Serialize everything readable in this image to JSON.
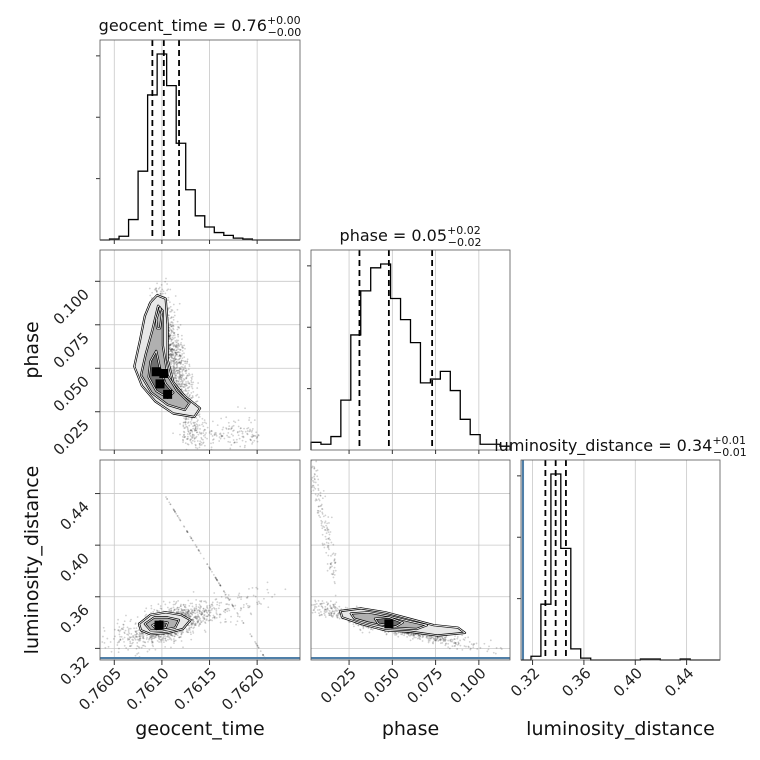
{
  "chart_data": {
    "type": "corner",
    "parameters": [
      {
        "name": "geocent_time",
        "axis_label": "geocent_time",
        "title": {
          "prefix": "geocent_time = 0.76",
          "plus": "+0.00",
          "minus": "−0.00"
        },
        "range": [
          0.76035,
          0.76245
        ],
        "ticks": [
          0.7605,
          0.761,
          0.7615,
          0.762
        ],
        "tick_labels": [
          "0.7605",
          "0.7610",
          "0.7615",
          "0.7620"
        ],
        "quantiles": [
          0.7609,
          0.76102,
          0.76118
        ],
        "hist": {
          "edges": [
            0.76035,
            0.76045,
            0.76055,
            0.76065,
            0.76075,
            0.76085,
            0.76095,
            0.76105,
            0.76115,
            0.76125,
            0.76135,
            0.76145,
            0.76155,
            0.76165,
            0.76175,
            0.76185,
            0.76195,
            0.76205,
            0.76215,
            0.76225,
            0.76235,
            0.76245
          ],
          "counts": [
            0,
            0.5,
            2,
            11,
            37,
            78,
            100,
            83,
            52,
            27,
            13,
            7,
            4,
            2.5,
            1,
            0.5,
            0,
            0,
            0,
            0,
            0
          ]
        }
      },
      {
        "name": "phase",
        "axis_label": "phase",
        "title": {
          "prefix": "phase = 0.05",
          "plus": "+0.02",
          "minus": "−0.02"
        },
        "range": [
          0.003,
          0.118
        ],
        "ticks": [
          0.025,
          0.05,
          0.075,
          0.1
        ],
        "tick_labels": [
          "0.025",
          "0.050",
          "0.075",
          "0.100"
        ],
        "quantiles": [
          0.031,
          0.048,
          0.073
        ],
        "hist": {
          "edges": [
            0.003,
            0.00875,
            0.0145,
            0.02025,
            0.026,
            0.03175,
            0.0375,
            0.04325,
            0.049,
            0.05475,
            0.0605,
            0.06625,
            0.072,
            0.07775,
            0.0835,
            0.08925,
            0.095,
            0.10075,
            0.1065,
            0.11225,
            0.118
          ],
          "counts": [
            4,
            3,
            7,
            26,
            60,
            83,
            95,
            97,
            79,
            68,
            56,
            35,
            37,
            41,
            31,
            16,
            8,
            3,
            3,
            2
          ]
        }
      },
      {
        "name": "luminosity_distance",
        "axis_label": "luminosity_distance",
        "title": {
          "prefix": "luminosity_distance = 0.34",
          "plus": "+0.01",
          "minus": "−0.01"
        },
        "range": [
          0.311,
          0.466
        ],
        "ticks": [
          0.32,
          0.36,
          0.4,
          0.44
        ],
        "tick_labels": [
          "0.32",
          "0.36",
          "0.40",
          "0.44"
        ],
        "quantiles": [
          0.33,
          0.338,
          0.346
        ],
        "truth": 0.3125,
        "hist": {
          "edges": [
            0.311,
            0.3188,
            0.3265,
            0.3343,
            0.342,
            0.3498,
            0.3575,
            0.3653,
            0.373,
            0.3808,
            0.3885,
            0.3963,
            0.404,
            0.4118,
            0.4195,
            0.4273,
            0.435,
            0.4428,
            0.4505,
            0.4583,
            0.466
          ],
          "counts": [
            0,
            2,
            30,
            100,
            60,
            6,
            1,
            0,
            0,
            0,
            0,
            0,
            0.5,
            0.5,
            0,
            0,
            0.5,
            0,
            0,
            0
          ]
        }
      }
    ],
    "pairs": [
      {
        "x": "geocent_time",
        "y": "phase",
        "contours": [
          [
            [
              0.76088,
              0.088
            ],
            [
              0.76095,
              0.092
            ],
            [
              0.76104,
              0.09
            ],
            [
              0.76106,
              0.075
            ],
            [
              0.76106,
              0.055
            ],
            [
              0.76112,
              0.042
            ],
            [
              0.76124,
              0.034
            ],
            [
              0.7614,
              0.027
            ],
            [
              0.76134,
              0.022
            ],
            [
              0.76112,
              0.024
            ],
            [
              0.76093,
              0.031
            ],
            [
              0.76079,
              0.04
            ],
            [
              0.76071,
              0.051
            ],
            [
              0.76077,
              0.066
            ],
            [
              0.76082,
              0.08
            ]
          ],
          [
            [
              0.7609,
              0.072
            ],
            [
              0.76096,
              0.086
            ],
            [
              0.76101,
              0.083
            ],
            [
              0.76101,
              0.063
            ],
            [
              0.76106,
              0.046
            ],
            [
              0.76116,
              0.037
            ],
            [
              0.76129,
              0.03
            ],
            [
              0.76124,
              0.026
            ],
            [
              0.76106,
              0.029
            ],
            [
              0.76089,
              0.036
            ],
            [
              0.76078,
              0.046
            ],
            [
              0.76083,
              0.058
            ]
          ],
          [
            [
              0.76094,
              0.06
            ],
            [
              0.76098,
              0.05
            ],
            [
              0.76104,
              0.041
            ],
            [
              0.76112,
              0.036
            ],
            [
              0.76106,
              0.033
            ],
            [
              0.76094,
              0.037
            ],
            [
              0.76086,
              0.045
            ],
            [
              0.76088,
              0.054
            ]
          ],
          [
            [
              0.76094,
              0.078
            ],
            [
              0.76098,
              0.085
            ],
            [
              0.761,
              0.081
            ],
            [
              0.76098,
              0.073
            ],
            [
              0.76095,
              0.073
            ]
          ]
        ],
        "dense_cells": [
          [
            0.76098,
            0.041
          ],
          [
            0.76106,
            0.035
          ],
          [
            0.76094,
            0.048
          ],
          [
            0.76102,
            0.047
          ]
        ]
      },
      {
        "x": "geocent_time",
        "y": "luminosity_distance",
        "contours": [
          [
            [
              0.76076,
              0.339
            ],
            [
              0.76088,
              0.346
            ],
            [
              0.76104,
              0.348
            ],
            [
              0.7612,
              0.346
            ],
            [
              0.7613,
              0.342
            ],
            [
              0.76122,
              0.335
            ],
            [
              0.76106,
              0.332
            ],
            [
              0.76088,
              0.331
            ],
            [
              0.76078,
              0.334
            ]
          ],
          [
            [
              0.76082,
              0.339
            ],
            [
              0.76092,
              0.344
            ],
            [
              0.76106,
              0.344
            ],
            [
              0.76118,
              0.342
            ],
            [
              0.76114,
              0.336
            ],
            [
              0.761,
              0.334
            ],
            [
              0.76088,
              0.334
            ]
          ],
          [
            [
              0.7609,
              0.338
            ],
            [
              0.76098,
              0.341
            ],
            [
              0.76106,
              0.34
            ],
            [
              0.76104,
              0.336
            ],
            [
              0.76094,
              0.335
            ]
          ]
        ],
        "dense_cells": [
          [
            0.76097,
            0.338
          ]
        ]
      },
      {
        "x": "phase",
        "y": "luminosity_distance",
        "contours": [
          [
            [
              0.02,
              0.349
            ],
            [
              0.032,
              0.351
            ],
            [
              0.046,
              0.348
            ],
            [
              0.06,
              0.343
            ],
            [
              0.074,
              0.338
            ],
            [
              0.088,
              0.336
            ],
            [
              0.092,
              0.332
            ],
            [
              0.076,
              0.33
            ],
            [
              0.06,
              0.333
            ],
            [
              0.046,
              0.334
            ],
            [
              0.032,
              0.339
            ],
            [
              0.021,
              0.344
            ]
          ],
          [
            [
              0.026,
              0.347
            ],
            [
              0.036,
              0.348
            ],
            [
              0.048,
              0.345
            ],
            [
              0.06,
              0.341
            ],
            [
              0.07,
              0.338
            ],
            [
              0.064,
              0.335
            ],
            [
              0.05,
              0.336
            ],
            [
              0.036,
              0.34
            ],
            [
              0.028,
              0.343
            ]
          ],
          [
            [
              0.04,
              0.343
            ],
            [
              0.048,
              0.344
            ],
            [
              0.056,
              0.34
            ],
            [
              0.052,
              0.337
            ],
            [
              0.042,
              0.339
            ]
          ]
        ],
        "dense_cells": [
          [
            0.048,
            0.339
          ]
        ]
      }
    ]
  }
}
